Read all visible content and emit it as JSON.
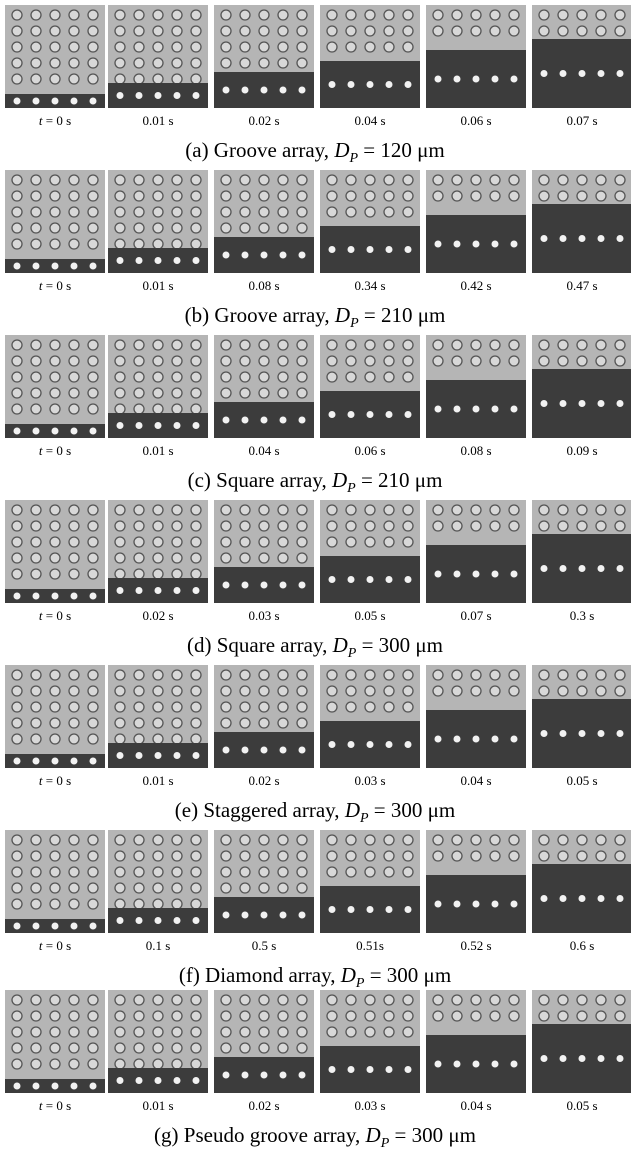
{
  "time_var": "t",
  "panels": [
    {
      "caption": {
        "prefix": "(a) Groove array, ",
        "symbol": "D",
        "subscript": "P",
        "suffix": " = 120 μm"
      },
      "times": [
        " = 0 s",
        "0.01 s",
        "0.02 s",
        "0.04 s",
        "0.06 s",
        "0.07 s"
      ]
    },
    {
      "caption": {
        "prefix": "(b) Groove array, ",
        "symbol": "D",
        "subscript": "P",
        "suffix": " = 210 μm"
      },
      "times": [
        " = 0 s",
        "0.01 s",
        "0.08 s",
        "0.34 s",
        "0.42 s",
        "0.47 s"
      ]
    },
    {
      "caption": {
        "prefix": "(c) Square array, ",
        "symbol": "D",
        "subscript": "P",
        "suffix": " = 210 μm"
      },
      "times": [
        " = 0 s",
        "0.01 s",
        "0.04 s",
        "0.06 s",
        "0.08 s",
        "0.09 s"
      ]
    },
    {
      "caption": {
        "prefix": "(d) Square array, ",
        "symbol": "D",
        "subscript": "P",
        "suffix": " = 300 μm"
      },
      "times": [
        " = 0 s",
        "0.02 s",
        "0.03 s",
        "0.05 s",
        "0.07 s",
        "0.3 s"
      ]
    },
    {
      "caption": {
        "prefix": "(e) Staggered array, ",
        "symbol": "D",
        "subscript": "P",
        "suffix": " = 300 μm"
      },
      "times": [
        " = 0 s",
        "0.01 s",
        "0.02 s",
        "0.03 s",
        "0.04 s",
        "0.05 s"
      ]
    },
    {
      "caption": {
        "prefix": "(f) Diamond array, ",
        "symbol": "D",
        "subscript": "P",
        "suffix": " = 300 μm"
      },
      "times": [
        " = 0 s",
        "0.1 s",
        "0.5 s",
        "0.51s",
        "0.52 s",
        "0.6 s"
      ]
    },
    {
      "caption": {
        "prefix": "(g) Pseudo groove array, ",
        "symbol": "D",
        "subscript": "P",
        "suffix": " = 300 μm"
      },
      "times": [
        " = 0 s",
        "0.01 s",
        "0.02 s",
        "0.03 s",
        "0.04 s",
        "0.05 s"
      ]
    }
  ]
}
